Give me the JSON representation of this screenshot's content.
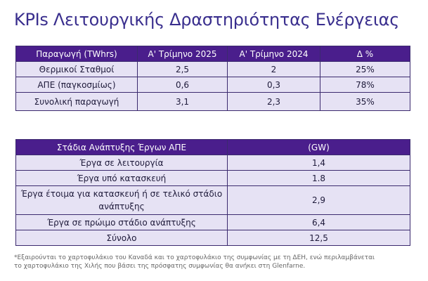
{
  "title": "KPIs Λειτουργικής Δραστηριότητας Ενέργειας",
  "kpi_table": {
    "header": [
      "Παραγωγή (TWhrs)",
      "Α' Τρίμηνο 2025",
      "Α' Τρίμηνο 2024",
      "Δ %"
    ],
    "rows": [
      [
        "Θερμικοί Σταθμοί",
        "2,5",
        "2",
        "25%"
      ],
      [
        "ΑΠΕ (παγκοσμίως)",
        "0,6",
        "0,3",
        "78%"
      ],
      [
        "Συνολική παραγωγή",
        "3,1",
        "2,3",
        "35%"
      ]
    ]
  },
  "projects_table": {
    "header": [
      "Στάδια Ανάπτυξης Έργων ΑΠΕ",
      "(GW)"
    ],
    "rows": [
      [
        "Έργα σε λειτουργία",
        "1,4"
      ],
      [
        "Έργα υπό κατασκευή",
        "1.8"
      ],
      [
        "Έργα έτοιμα για κατασκευή ή σε τελικό στάδιο ανάπτυξης",
        "2,9"
      ],
      [
        "Έργα σε πρώιμο στάδιο ανάπτυξης",
        "6,4"
      ],
      [
        "Σύνολο",
        "12,5"
      ]
    ]
  },
  "footnote": [
    "*Εξαιρούνται το χαρτοφυλάκιο του Καναδά και το χαρτοφυλάκιο της συμφωνίας με τη ΔΕΗ, ενώ περιλαμβάνεται",
    "το χαρτοφυλάκιο της Χιλής που βάσει της πρόσφατης συμφωνίας θα ανήκει στη Glenfarne."
  ]
}
